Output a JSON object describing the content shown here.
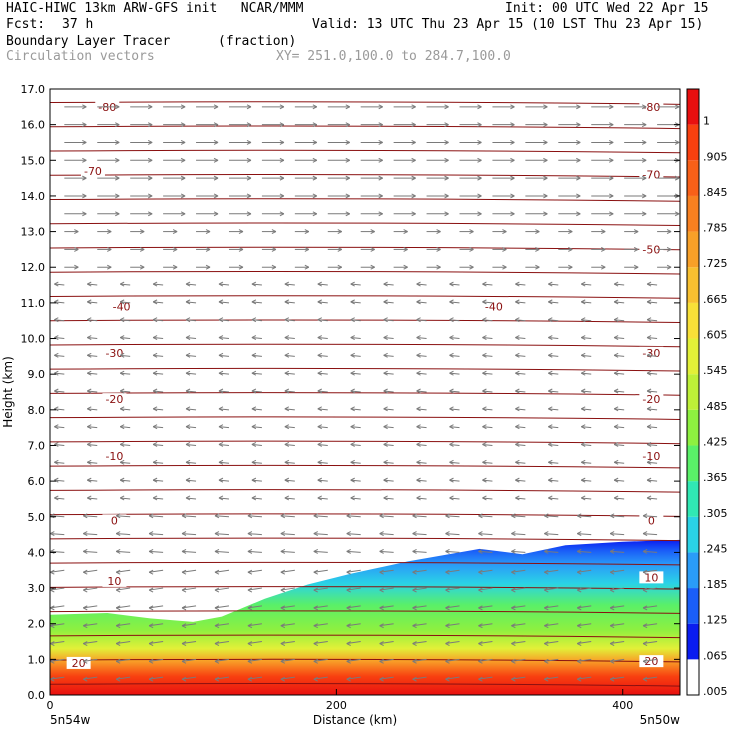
{
  "header": {
    "line1_left": "HAIC-HIWC 13km ARW-GFS init   NCAR/MMM",
    "line1_right": "Init: 00 UTC Wed 22 Apr 15",
    "fcst_label": "Fcst:",
    "fcst_value": "37 h",
    "valid": "Valid: 13 UTC Thu 23 Apr 15 (10 LST Thu 23 Apr 15)",
    "field_name": "Boundary Layer Tracer",
    "field_unit": "(fraction)",
    "vectors": "Circulation vectors",
    "xy": "XY= 251.0,100.0 to 284.7,100.0"
  },
  "chart_data": {
    "type": "heatmap",
    "xlabel": "Distance (km)",
    "ylabel": "Height (km)",
    "xlim": [
      0,
      440
    ],
    "ylim": [
      0,
      17
    ],
    "x_ticks": [
      "0",
      "200",
      "400"
    ],
    "y_ticks": [
      "0.0",
      "1.0",
      "2.0",
      "3.0",
      "4.0",
      "5.0",
      "6.0",
      "7.0",
      "8.0",
      "9.0",
      "10.0",
      "11.0",
      "12.0",
      "13.0",
      "14.0",
      "15.0",
      "16.0",
      "17.0"
    ],
    "x_endpoint_left": "5n54w",
    "x_endpoint_right": "5n50w",
    "colorbar_labels": [
      ".005",
      ".065",
      ".125",
      ".185",
      ".245",
      ".305",
      ".365",
      ".425",
      ".485",
      ".545",
      ".605",
      ".665",
      ".725",
      ".785",
      ".845",
      ".905",
      "1"
    ],
    "colorbar_colors": [
      "#ffffff",
      "#0a1cf0",
      "#1a5ef8",
      "#2a9cf8",
      "#2ad2e6",
      "#30e8b4",
      "#5af068",
      "#8ef040",
      "#bef038",
      "#e2f038",
      "#f8e038",
      "#f8c030",
      "#f8a028",
      "#f88020",
      "#f86018",
      "#f84010",
      "#e81010"
    ],
    "temperature_contour_labels": [
      {
        "label": "20",
        "x": 20,
        "y": 0.9
      },
      {
        "label": "20",
        "x": 420,
        "y": 0.95
      },
      {
        "label": "10",
        "x": 45,
        "y": 3.2
      },
      {
        "label": "10",
        "x": 420,
        "y": 3.3
      },
      {
        "label": "0",
        "x": 45,
        "y": 4.9
      },
      {
        "label": "0",
        "x": 420,
        "y": 4.9
      },
      {
        "label": "-10",
        "x": 45,
        "y": 6.7
      },
      {
        "label": "-10",
        "x": 420,
        "y": 6.7
      },
      {
        "label": "-20",
        "x": 45,
        "y": 8.3
      },
      {
        "label": "-20",
        "x": 420,
        "y": 8.3
      },
      {
        "label": "-30",
        "x": 45,
        "y": 9.6
      },
      {
        "label": "-30",
        "x": 420,
        "y": 9.6
      },
      {
        "label": "-40",
        "x": 50,
        "y": 10.9
      },
      {
        "label": "-40",
        "x": 310,
        "y": 10.9
      },
      {
        "label": "-50",
        "x": 420,
        "y": 12.5
      },
      {
        "label": "-70",
        "x": 30,
        "y": 14.7
      },
      {
        "label": "-70",
        "x": 420,
        "y": 14.6
      },
      {
        "label": "-80",
        "x": 40,
        "y": 16.5
      },
      {
        "label": "-80",
        "x": 420,
        "y": 16.5
      }
    ],
    "tracer_top_km": [
      [
        0,
        2.25
      ],
      [
        40,
        2.3
      ],
      [
        70,
        2.15
      ],
      [
        100,
        2.05
      ],
      [
        120,
        2.2
      ],
      [
        150,
        2.7
      ],
      [
        180,
        3.1
      ],
      [
        210,
        3.4
      ],
      [
        250,
        3.75
      ],
      [
        300,
        4.1
      ],
      [
        330,
        3.95
      ],
      [
        360,
        4.2
      ],
      [
        400,
        4.3
      ],
      [
        440,
        4.35
      ]
    ]
  },
  "colors": {
    "contour": "#8a1010",
    "vector": "#7a7a7a",
    "frame": "#000000"
  }
}
